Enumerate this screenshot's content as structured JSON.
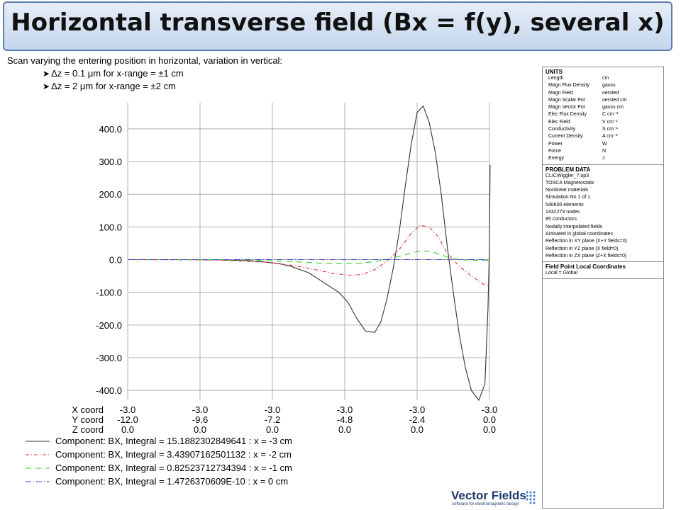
{
  "title": "Horizontal transverse field (Bx = f(y), several x)",
  "intro": "Scan varying the entering position in horizontal, variation in vertical:",
  "bullets": [
    "Δz = 0.1 μm for x-range = ±1 cm",
    "Δz = 2 μm for x-range = ±2 cm"
  ],
  "chart_data": {
    "type": "line",
    "y_ticks": [
      "400.0",
      "300.0",
      "200.0",
      "100.0",
      "0.0",
      "-100.0",
      "-200.0",
      "-300.0",
      "-400.0"
    ],
    "ylim": [
      -430,
      480
    ],
    "grid": true,
    "x_axis_rows": [
      {
        "label": "X coord",
        "ticks": [
          "-3.0",
          "-3.0",
          "-3.0",
          "-3.0",
          "-3.0",
          "-3.0"
        ]
      },
      {
        "label": "Y coord",
        "ticks": [
          "-12.0",
          "-9.6",
          "-7.2",
          "-4.8",
          "-2.4",
          "0.0"
        ]
      },
      {
        "label": "Z coord",
        "ticks": [
          "0.0",
          "0.0",
          "0.0",
          "0.0",
          "0.0",
          "0.0"
        ]
      }
    ],
    "x_values": [
      -12.0,
      -9.6,
      -7.2,
      -4.8,
      -2.4,
      0.0
    ],
    "series": [
      {
        "name": "Component: BX, Integral = 15.1882302849641 : x = -3 cm",
        "color": "#333333",
        "dash": "",
        "points": [
          [
            -12,
            0
          ],
          [
            -10,
            0
          ],
          [
            -9,
            -1
          ],
          [
            -8,
            -3
          ],
          [
            -7.4,
            -8
          ],
          [
            -7,
            -12
          ],
          [
            -6.6,
            -20
          ],
          [
            -6,
            -40
          ],
          [
            -5.5,
            -70
          ],
          [
            -5,
            -100
          ],
          [
            -4.7,
            -130
          ],
          [
            -4.4,
            -180
          ],
          [
            -4.1,
            -220
          ],
          [
            -3.8,
            -222
          ],
          [
            -3.6,
            -190
          ],
          [
            -3.4,
            -120
          ],
          [
            -3.2,
            -30
          ],
          [
            -3.0,
            80
          ],
          [
            -2.8,
            220
          ],
          [
            -2.6,
            350
          ],
          [
            -2.4,
            450
          ],
          [
            -2.2,
            470
          ],
          [
            -2.0,
            420
          ],
          [
            -1.8,
            330
          ],
          [
            -1.6,
            200
          ],
          [
            -1.4,
            40
          ],
          [
            -1.2,
            -100
          ],
          [
            -1.0,
            -230
          ],
          [
            -0.8,
            -330
          ],
          [
            -0.6,
            -400
          ],
          [
            -0.35,
            -430
          ],
          [
            -0.15,
            -380
          ],
          [
            -0.05,
            -150
          ],
          [
            0,
            50
          ],
          [
            0.02,
            290
          ]
        ]
      },
      {
        "name": "Component: BX, Integral = 3.43907162501132 : x = -2 cm",
        "color": "#e03030",
        "dash": "5,3,1,3",
        "points": [
          [
            -12,
            0
          ],
          [
            -9,
            -1
          ],
          [
            -7.4,
            -8
          ],
          [
            -6.5,
            -18
          ],
          [
            -5.8,
            -30
          ],
          [
            -5.2,
            -42
          ],
          [
            -4.6,
            -48
          ],
          [
            -4.2,
            -45
          ],
          [
            -3.8,
            -30
          ],
          [
            -3.4,
            -5
          ],
          [
            -3.0,
            30
          ],
          [
            -2.6,
            80
          ],
          [
            -2.3,
            105
          ],
          [
            -2.0,
            100
          ],
          [
            -1.7,
            70
          ],
          [
            -1.4,
            20
          ],
          [
            -1.0,
            -20
          ],
          [
            -0.6,
            -50
          ],
          [
            -0.2,
            -75
          ],
          [
            0,
            -80
          ]
        ]
      },
      {
        "name": "Component: BX, Integral = 0.82523712734394 : x = -1 cm",
        "color": "#33cc33",
        "dash": "8,6",
        "points": [
          [
            -12,
            0
          ],
          [
            -9,
            0
          ],
          [
            -7.4,
            -3
          ],
          [
            -6.5,
            -6
          ],
          [
            -5.8,
            -10
          ],
          [
            -5.2,
            -12
          ],
          [
            -4.7,
            -12
          ],
          [
            -4.2,
            -10
          ],
          [
            -3.8,
            -6
          ],
          [
            -3.4,
            0
          ],
          [
            -3.0,
            10
          ],
          [
            -2.6,
            20
          ],
          [
            -2.3,
            27
          ],
          [
            -2.0,
            26
          ],
          [
            -1.7,
            18
          ],
          [
            -1.4,
            8
          ],
          [
            -1.0,
            0
          ],
          [
            -0.6,
            -2
          ],
          [
            0,
            -2
          ]
        ]
      },
      {
        "name": "Component: BX, Integral = 1.4726370609E-10 : x = 0 cm",
        "color": "#4444cc",
        "dash": "8,3,1,3",
        "points": [
          [
            -12,
            0
          ],
          [
            0,
            0
          ]
        ]
      }
    ]
  },
  "units_panel": {
    "units_header": "UNITS",
    "units": [
      [
        "Length",
        "cm"
      ],
      [
        "Magn Flux Density",
        "gauss"
      ],
      [
        "Magn Field",
        "oersted"
      ],
      [
        "Magn Scalar Pot",
        "oersted cm"
      ],
      [
        "Magn Vector Pot",
        "gauss cm"
      ],
      [
        "Elec Flux Density",
        "C cm⁻²"
      ],
      [
        "Elec Field",
        "V cm⁻¹"
      ],
      [
        "Conductivity",
        "S cm⁻¹"
      ],
      [
        "Current Density",
        "A cm⁻²"
      ],
      [
        "Power",
        "W"
      ],
      [
        "Force",
        "N"
      ],
      [
        "Energy",
        "J"
      ]
    ],
    "problem_header": "PROBLEM DATA",
    "problem_lines": [
      "CLICWiggler_7.op3",
      "TOSCA Magnetostatic",
      "Nonlinear materials",
      "Simulation No 1 of 1",
      "540600 elements",
      "1432273 nodes",
      "85 conductors",
      "Nodally interpolated fields",
      "Activated in global coordinates",
      "Reflection in XY plane (X+Y fields=0)",
      "Reflection in YZ plane (X field=0)",
      "Reflection in ZX plane (Z+X fields=0)"
    ],
    "local_header": "Field Point Local Coordinates",
    "local_line": "Local = Global"
  },
  "logo": {
    "name": "Vector Fields",
    "tagline": "software for electromagnetic design"
  }
}
